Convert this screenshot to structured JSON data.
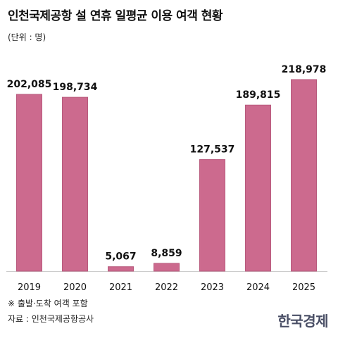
{
  "title": "인천국제공항 설 연휴 일평균 이용 여객 현황",
  "unit_label": "(단위 : 명)",
  "note": "※ 출발·도착 여객 포함",
  "source": "자료 : 인천국제공항공사",
  "logo_text": "한국경제",
  "colors": {
    "bar": "#cc6a8e",
    "bar_stroke": "#b85a7d",
    "axis": "#cccccc"
  },
  "chart_data": {
    "type": "bar",
    "title": "인천국제공항 설 연휴 일평균 이용 여객 현황",
    "ylabel": "",
    "xlabel": "",
    "categories": [
      "2019",
      "2020",
      "2021",
      "2022",
      "2023",
      "2024",
      "2025"
    ],
    "values": [
      202085,
      198734,
      5067,
      8859,
      127537,
      189815,
      218978
    ],
    "value_labels": [
      "202,085",
      "198,734",
      "5,067",
      "8,859",
      "127,537",
      "189,815",
      "218,978"
    ],
    "ylim": [
      0,
      230000
    ],
    "grid": false,
    "legend": "none"
  }
}
